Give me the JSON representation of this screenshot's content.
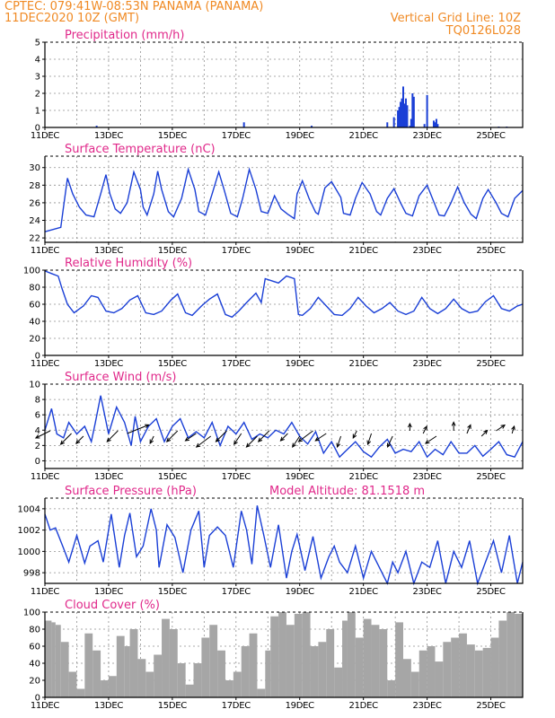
{
  "header": {
    "station": "CPTEC:   079:41W-08:53N   PANAMA (PANAMA)",
    "run": "11DEC2020 10Z (GMT)",
    "grid_note": "Vertical Grid Line: 10Z",
    "code": "TQ0126L028"
  },
  "colors": {
    "header": "#f08a24",
    "title": "#e0288a",
    "line": "#1a3fd6",
    "cloud": "#a6a6a6",
    "arrow": "#000000"
  },
  "chart_data": [
    {
      "type": "bar",
      "title": "Precipitation (mm/h)",
      "ylim": [
        0,
        5
      ],
      "yticks": [
        0,
        1,
        2,
        3,
        4,
        5
      ],
      "xlim_hours": [
        0,
        360
      ],
      "xticks": [
        "11DEC",
        "13DEC",
        "15DEC",
        "17DEC",
        "19DEC",
        "21DEC",
        "23DEC",
        "25DEC"
      ],
      "x_hours": [
        39,
        150,
        201,
        258,
        263,
        266,
        267,
        268,
        269,
        270,
        271,
        272,
        273,
        275,
        276,
        277,
        278,
        286,
        288,
        293,
        294,
        295,
        296,
        342,
        348
      ],
      "values": [
        0.1,
        0.3,
        0.1,
        0.3,
        0.6,
        1.0,
        1.2,
        1.5,
        1.7,
        2.4,
        1.4,
        1.7,
        1.3,
        0.1,
        0.5,
        2.0,
        1.8,
        0.2,
        1.9,
        0.4,
        0.3,
        0.5,
        0.2,
        0.05,
        0.05
      ]
    },
    {
      "type": "line",
      "title": "Surface Temperature (nC)",
      "ylim": [
        21.5,
        31.3
      ],
      "yticks": [
        22,
        24,
        26,
        28,
        30
      ],
      "xticks": [
        "11DEC",
        "13DEC",
        "15DEC",
        "17DEC",
        "19DEC",
        "21DEC",
        "23DEC",
        "25DEC"
      ],
      "x_hours": [
        0,
        12,
        14,
        17,
        21,
        26,
        31,
        37,
        42,
        46,
        49,
        53,
        57,
        62,
        67,
        72,
        74,
        77,
        82,
        85,
        88,
        93,
        97,
        103,
        108,
        113,
        116,
        121,
        126,
        131,
        135,
        140,
        145,
        149,
        154,
        159,
        163,
        168,
        173,
        178,
        183,
        188,
        190,
        194,
        199,
        204,
        206,
        211,
        216,
        223,
        225,
        230,
        234,
        239,
        245,
        250,
        253,
        258,
        263,
        268,
        272,
        277,
        282,
        288,
        292,
        297,
        301,
        306,
        311,
        316,
        321,
        325,
        330,
        334,
        340,
        344,
        349,
        354,
        360
      ],
      "values": [
        22.7,
        23.2,
        25.5,
        28.8,
        27,
        25.5,
        24.6,
        24.4,
        27,
        29.2,
        27,
        25.3,
        24.8,
        26,
        29.5,
        27.5,
        25.5,
        24.6,
        27,
        29.6,
        27.5,
        25,
        24.4,
        26.5,
        29.8,
        27.5,
        25,
        24.6,
        27,
        29.5,
        27.5,
        24.8,
        24.4,
        26.5,
        29.8,
        27.5,
        25,
        24.8,
        26.8,
        25.3,
        24.7,
        24.2,
        27,
        28.5,
        26.5,
        24.9,
        24.7,
        27.7,
        28.4,
        26.6,
        24.8,
        24.6,
        26.5,
        28.3,
        27,
        25,
        24.6,
        26.5,
        27.6,
        26,
        24.8,
        24.5,
        26.8,
        28,
        26.5,
        24.6,
        24.5,
        26,
        27.8,
        26,
        24.7,
        24.2,
        26.5,
        27.5,
        26,
        24.8,
        24.4,
        26.5,
        27.4
      ]
    },
    {
      "type": "line",
      "title": "Relative Humidity (%)",
      "ylim": [
        0,
        100
      ],
      "yticks": [
        0,
        20,
        40,
        60,
        80,
        100
      ],
      "xticks": [
        "11DEC",
        "13DEC",
        "15DEC",
        "17DEC",
        "19DEC",
        "21DEC",
        "23DEC",
        "25DEC"
      ],
      "x_hours": [
        0,
        5,
        10,
        13,
        17,
        22,
        29,
        35,
        40,
        46,
        52,
        58,
        64,
        70,
        76,
        82,
        88,
        95,
        100,
        106,
        111,
        118,
        124,
        130,
        136,
        141,
        146,
        152,
        159,
        163,
        166,
        170,
        176,
        182,
        188,
        191,
        194,
        200,
        206,
        212,
        218,
        224,
        230,
        236,
        242,
        248,
        254,
        260,
        266,
        272,
        278,
        284,
        290,
        296,
        302,
        308,
        314,
        320,
        326,
        332,
        338,
        344,
        350,
        356,
        360
      ],
      "values": [
        99,
        96,
        93,
        78,
        60,
        50,
        58,
        70,
        68,
        52,
        50,
        55,
        65,
        70,
        50,
        48,
        52,
        65,
        72,
        50,
        47,
        58,
        66,
        72,
        48,
        45,
        52,
        62,
        73,
        62,
        90,
        88,
        85,
        93,
        90,
        48,
        47,
        55,
        68,
        58,
        48,
        47,
        55,
        68,
        58,
        50,
        55,
        62,
        52,
        48,
        52,
        68,
        55,
        49,
        55,
        66,
        55,
        50,
        52,
        63,
        70,
        55,
        52,
        58,
        60
      ]
    },
    {
      "type": "line",
      "title": "Surface Wind (m/s)",
      "ylim": [
        -1,
        10
      ],
      "yticks": [
        0,
        2,
        4,
        6,
        8,
        10
      ],
      "xticks": [
        "11DEC",
        "13DEC",
        "15DEC",
        "17DEC",
        "19DEC",
        "21DEC",
        "23DEC",
        "25DEC"
      ],
      "x_hours": [
        0,
        5,
        9,
        14,
        18,
        24,
        30,
        35,
        38,
        42,
        48,
        54,
        60,
        65,
        68,
        72,
        78,
        84,
        90,
        96,
        102,
        108,
        114,
        120,
        126,
        132,
        138,
        144,
        150,
        156,
        162,
        168,
        174,
        180,
        186,
        192,
        198,
        204,
        210,
        216,
        222,
        228,
        234,
        240,
        246,
        252,
        258,
        264,
        270,
        276,
        282,
        288,
        294,
        300,
        306,
        312,
        318,
        324,
        330,
        336,
        342,
        348,
        354,
        360
      ],
      "values": [
        4,
        6.8,
        3.5,
        3,
        5,
        3.5,
        4.5,
        2.5,
        5,
        8.5,
        3.5,
        7,
        5,
        2,
        5.8,
        2.5,
        4.5,
        5.5,
        2.5,
        4.5,
        5.5,
        3,
        3.8,
        3,
        5,
        2,
        4.5,
        3.5,
        5,
        2.8,
        3.5,
        3,
        4,
        3.5,
        5,
        3.2,
        2.2,
        3.8,
        1,
        2.5,
        0.5,
        1.5,
        2.5,
        1.2,
        0.5,
        1.8,
        2.8,
        1,
        1.5,
        1.2,
        2.5,
        0.5,
        1.5,
        0.8,
        2.5,
        1,
        1,
        2,
        0.6,
        1.5,
        2.5,
        0.8,
        0.5,
        2.5
      ],
      "vectors": {
        "x_hours": [
          4,
          20,
          29,
          55,
          62,
          82,
          100,
          114,
          125,
          137,
          148,
          160,
          169,
          183,
          192,
          202,
          212,
          223,
          235,
          246,
          262,
          275,
          285,
          295,
          308,
          318,
          329,
          340,
          352
        ],
        "u": [
          -2,
          -1.5,
          -1,
          -1.5,
          3,
          -0.5,
          -1.5,
          -1.5,
          -2,
          -1.5,
          -1,
          -1.5,
          -1.5,
          -1,
          -1,
          -2,
          -1.5,
          -0.5,
          -0.5,
          -0.5,
          -0.7,
          0,
          0.5,
          -1.5,
          0,
          0.5,
          0.8,
          1.2,
          0.3
        ],
        "v": [
          -1,
          -1.5,
          -1,
          -1.5,
          1.2,
          -1,
          -1.5,
          -1,
          -1.5,
          -1.5,
          -1.5,
          -1.5,
          -1.5,
          -1,
          -1.5,
          -1.5,
          -1,
          -1.5,
          -1,
          -1.5,
          -1.5,
          1,
          1,
          -1,
          1.2,
          1.2,
          0.8,
          0.8,
          1
        ]
      }
    },
    {
      "type": "line",
      "title": "Surface Pressure (hPa)",
      "annotation": "Model Altitude: 81.1518  m",
      "ylim": [
        997,
        1005
      ],
      "yticks": [
        998,
        1000,
        1002,
        1004
      ],
      "xticks": [
        "11DEC",
        "13DEC",
        "15DEC",
        "17DEC",
        "19DEC",
        "21DEC",
        "23DEC",
        "25DEC"
      ],
      "x_hours": [
        0,
        4,
        8,
        14,
        18,
        24,
        30,
        34,
        40,
        44,
        50,
        56,
        60,
        64,
        69,
        74,
        80,
        84,
        86,
        92,
        98,
        104,
        110,
        116,
        120,
        124,
        130,
        136,
        142,
        148,
        152,
        156,
        160,
        165,
        170,
        176,
        182,
        186,
        190,
        196,
        202,
        208,
        214,
        218,
        222,
        228,
        234,
        240,
        246,
        252,
        258,
        262,
        266,
        272,
        278,
        284,
        290,
        296,
        302,
        308,
        314,
        320,
        326,
        332,
        338,
        344,
        350,
        356,
        360
      ],
      "values": [
        1003.5,
        1002,
        1002.2,
        1000.3,
        999,
        1001.5,
        998.9,
        1000.5,
        1001,
        999,
        1003.5,
        998.5,
        1001.5,
        1003.6,
        999.5,
        1000.5,
        1004,
        1002,
        998.5,
        1002.5,
        1001.3,
        998,
        1002,
        1003.8,
        998.5,
        1001.5,
        1002.3,
        1001.5,
        998.5,
        1003.8,
        1002,
        998.8,
        1004.3,
        1001.5,
        998.5,
        1002.5,
        997.5,
        1000,
        1001.6,
        998.2,
        1001.4,
        997.5,
        999.5,
        1000.5,
        999,
        998,
        1000.5,
        997.5,
        1000,
        998.5,
        997,
        999,
        998,
        1000,
        997,
        999,
        998.5,
        1001,
        997,
        1000,
        998.5,
        1001,
        997,
        999,
        1001,
        998,
        1001.5,
        997,
        999
      ]
    },
    {
      "type": "area",
      "title": "Cloud Cover (%)",
      "ylim": [
        0,
        100
      ],
      "yticks": [
        0,
        20,
        40,
        60,
        80,
        100
      ],
      "xticks": [
        "11DEC",
        "13DEC",
        "15DEC",
        "17DEC",
        "19DEC",
        "21DEC",
        "23DEC",
        "25DEC"
      ],
      "x_hours": [
        0,
        5,
        8,
        12,
        18,
        24,
        30,
        36,
        42,
        48,
        54,
        60,
        64,
        70,
        76,
        82,
        88,
        94,
        100,
        106,
        112,
        118,
        124,
        130,
        136,
        142,
        148,
        154,
        160,
        166,
        170,
        176,
        182,
        188,
        194,
        200,
        206,
        212,
        218,
        224,
        228,
        234,
        240,
        246,
        252,
        258,
        264,
        270,
        276,
        282,
        288,
        294,
        300,
        306,
        312,
        318,
        324,
        330,
        336,
        342,
        348,
        354,
        360
      ],
      "values": [
        90,
        88,
        85,
        65,
        30,
        10,
        75,
        55,
        20,
        25,
        72,
        60,
        80,
        45,
        30,
        50,
        92,
        80,
        40,
        15,
        40,
        70,
        85,
        55,
        20,
        30,
        60,
        75,
        10,
        55,
        95,
        100,
        85,
        98,
        100,
        60,
        65,
        80,
        35,
        90,
        100,
        70,
        92,
        85,
        80,
        20,
        88,
        45,
        30,
        55,
        60,
        42,
        65,
        70,
        75,
        62,
        55,
        58,
        70,
        90,
        100,
        98,
        100
      ]
    }
  ]
}
